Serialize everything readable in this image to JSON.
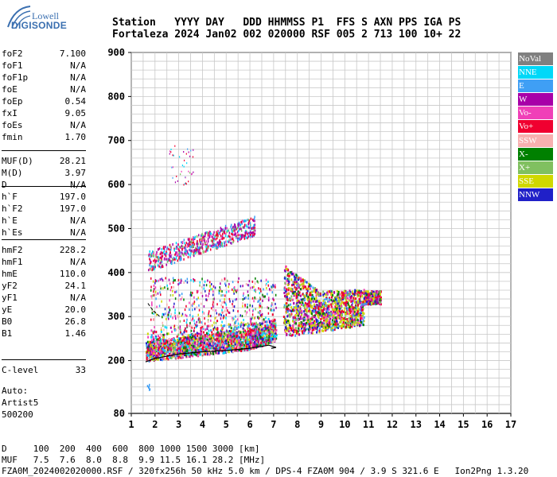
{
  "logo": {
    "line1": "Lowell",
    "line2": "DIGISONDE"
  },
  "header": {
    "line1": "Station   YYYY DAY   DDD HHMMSS P1  FFS S AXN PPS IGA PS",
    "line2": "Fortaleza 2024 Jan02 002 020000 RSF 005 2 713 100 10+ 22"
  },
  "params": {
    "group1": [
      {
        "label": "foF2",
        "value": "7.100"
      },
      {
        "label": "foF1",
        "value": "N/A"
      },
      {
        "label": "foF1p",
        "value": "N/A"
      },
      {
        "label": "foE",
        "value": "N/A"
      },
      {
        "label": "foEp",
        "value": "0.54"
      },
      {
        "label": "fxI",
        "value": "9.05"
      },
      {
        "label": "foEs",
        "value": "N/A"
      },
      {
        "label": "fmin",
        "value": "1.70"
      }
    ],
    "group2": [
      {
        "label": "MUF(D)",
        "value": "28.21"
      },
      {
        "label": "M(D)",
        "value": "3.97"
      },
      {
        "label": "D",
        "value": "N/A"
      }
    ],
    "group3": [
      {
        "label": "h`F",
        "value": "197.0"
      },
      {
        "label": "h`F2",
        "value": "197.0"
      },
      {
        "label": "h`E",
        "value": "N/A"
      },
      {
        "label": "h`Es",
        "value": "N/A"
      }
    ],
    "group4": [
      {
        "label": "hmF2",
        "value": "228.2"
      },
      {
        "label": "hmF1",
        "value": "N/A"
      },
      {
        "label": "hmE",
        "value": "110.0"
      },
      {
        "label": "yF2",
        "value": "24.1"
      },
      {
        "label": "yF1",
        "value": "N/A"
      },
      {
        "label": "yE",
        "value": "20.0"
      },
      {
        "label": "B0",
        "value": "26.8"
      },
      {
        "label": "B1",
        "value": "1.46"
      }
    ],
    "group5": [
      {
        "label": "C-level",
        "value": "33"
      }
    ]
  },
  "auto": {
    "line1": "Auto:",
    "line2": "Artist5",
    "line3": "500200"
  },
  "legend": [
    {
      "label": "NoVal",
      "color": "#808080"
    },
    {
      "label": "NNE",
      "color": "#00d8f8"
    },
    {
      "label": "E",
      "color": "#3f9ff5"
    },
    {
      "label": "W",
      "color": "#a800a8"
    },
    {
      "label": "Vo-",
      "color": "#f040b8"
    },
    {
      "label": "Vo+",
      "color": "#f00030"
    },
    {
      "label": "SSW",
      "color": "#f8b0b0"
    },
    {
      "label": "X-",
      "color": "#008000"
    },
    {
      "label": "X+",
      "color": "#80c060"
    },
    {
      "label": "SSE",
      "color": "#d0d800"
    },
    {
      "label": "NNW",
      "color": "#2020c8"
    }
  ],
  "chart_data": {
    "type": "scatter",
    "title": "",
    "xlabel": "",
    "ylabel": "",
    "xlim": [
      1,
      17
    ],
    "ylim": [
      80,
      900
    ],
    "x_ticks": [
      1,
      2,
      3,
      4,
      5,
      6,
      7,
      8,
      9,
      10,
      11,
      12,
      13,
      14,
      15,
      16,
      17
    ],
    "y_ticks": [
      80,
      200,
      300,
      400,
      500,
      600,
      700,
      800,
      900
    ],
    "grid": true,
    "legend_position": "right",
    "traces": [
      {
        "name": "F2 O-trace",
        "x_range": [
          1.6,
          7.1
        ],
        "y_range": [
          205,
          265
        ]
      },
      {
        "name": "multi-hop 2F",
        "x_range": [
          1.7,
          6.2
        ],
        "y_range": [
          400,
          550
        ]
      },
      {
        "name": "spread F",
        "x_range": [
          7.4,
          11.5
        ],
        "y_range": [
          250,
          420
        ]
      }
    ],
    "profile_line": {
      "x": [
        1.6,
        2.0,
        3.0,
        4.0,
        5.0,
        6.0,
        6.8,
        7.1,
        6.9
      ],
      "y": [
        197,
        205,
        215,
        220,
        223,
        228,
        235,
        230,
        228
      ]
    },
    "profile_upper": {
      "x": [
        1.7,
        1.9,
        2.2
      ],
      "y": [
        330,
        315,
        300
      ]
    }
  },
  "footer": {
    "line1": "D     100  200  400  600  800 1000 1500 3000 [km]",
    "line2": "MUF   7.5  7.6  8.0  8.8  9.9 11.5 16.1 28.2 [MHz]",
    "line3": "FZA0M_2024002020000.RSF / 320fx256h 50 kHz 5.0 km / DPS-4 FZA0M 904 / 3.9 S 321.6 E   Ion2Png 1.3.20"
  }
}
